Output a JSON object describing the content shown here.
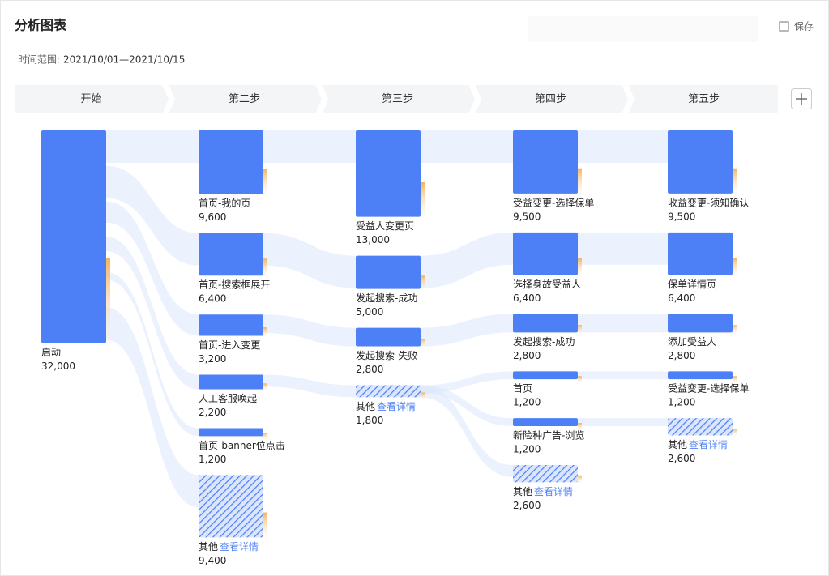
{
  "chart_data": {
    "type": "path-sankey",
    "title": "分析图表",
    "save_label": "保存",
    "time_label": "时间范围:",
    "time_range": "2021/10/01—2021/10/15",
    "detail_link": "查看详情",
    "color": "#4d7ff7",
    "columns": [
      {
        "title": "开始",
        "categories": [
          "启动"
        ],
        "values": [
          32000
        ],
        "value_labels": [
          "32,000"
        ]
      },
      {
        "title": "第二步",
        "categories": [
          "首页-我的页",
          "首页-搜索框展开",
          "首页-进入变更",
          "人工客服唤起",
          "首页-banner位点击"
        ],
        "values": [
          9600,
          6400,
          3200,
          2200,
          1200
        ],
        "value_labels": [
          "9,600",
          "6,400",
          "3,200",
          "2,200",
          "1,200"
        ],
        "other": {
          "name": "其他",
          "value": 9400,
          "value_label": "9,400"
        }
      },
      {
        "title": "第三步",
        "categories": [
          "受益人变更页",
          "发起搜索-成功",
          "发起搜索-失败"
        ],
        "values": [
          13000,
          5000,
          2800
        ],
        "value_labels": [
          "13,000",
          "5,000",
          "2,800"
        ],
        "other": {
          "name": "其他",
          "value": 1800,
          "value_label": "1,800"
        }
      },
      {
        "title": "第四步",
        "categories": [
          "受益变更-选择保单",
          "选择身故受益人",
          "发起搜索-成功",
          "首页",
          "新险种广告-浏览"
        ],
        "values": [
          9500,
          6400,
          2800,
          1200,
          1200
        ],
        "value_labels": [
          "9,500",
          "6,400",
          "2,800",
          "1,200",
          "1,200"
        ],
        "other": {
          "name": "其他",
          "value": 2600,
          "value_label": "2,600"
        }
      },
      {
        "title": "第五步",
        "categories": [
          "收益变更-须知确认",
          "保单详情页",
          "添加受益人",
          "受益变更-选择保单"
        ],
        "values": [
          9500,
          6400,
          2800,
          1200
        ],
        "value_labels": [
          "9,500",
          "6,400",
          "2,800",
          "1,200"
        ],
        "other": {
          "name": "其他",
          "value": 2600,
          "value_label": "2,600"
        }
      }
    ]
  }
}
